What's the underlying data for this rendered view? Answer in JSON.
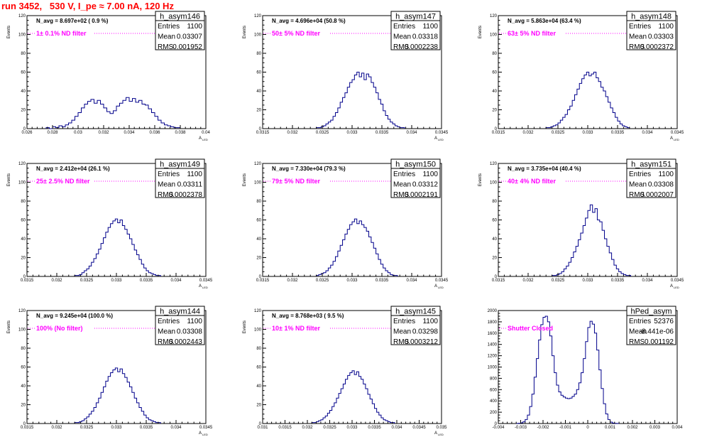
{
  "page_title": "run 3452,   530 V, I_pe ≈ 7.00 nA, 120 Hz",
  "chart_data": [
    {
      "type": "bar",
      "name": "h_asym146",
      "navg": "N_avg = 8.697e+02 ( 0.9 %)",
      "filter": "1± 0.1% ND filter",
      "stats": {
        "entries": "1100",
        "mean": "0.03307",
        "rms": "0.001952"
      },
      "xlabel": "A",
      "xlabel_sub": "LED",
      "ylabel": "Events",
      "xlim": [
        0.026,
        0.04
      ],
      "ylim": [
        0,
        120
      ],
      "xticks": [
        "0.026",
        "0.028",
        "0.03",
        "0.032",
        "0.034",
        "0.036",
        "0.038",
        "0.04"
      ],
      "yticks": [
        "0",
        "20",
        "40",
        "60",
        "80",
        "100",
        "120"
      ],
      "bins": {
        "start": 0.0275,
        "width": 0.00025,
        "counts": [
          1,
          0,
          2,
          1,
          3,
          2,
          4,
          6,
          9,
          13,
          17,
          22,
          26,
          29,
          31,
          27,
          30,
          26,
          22,
          18,
          16,
          19,
          24,
          27,
          30,
          33,
          29,
          32,
          28,
          30,
          26,
          25,
          21,
          17,
          13,
          9,
          6,
          4,
          3,
          2,
          1,
          1
        ]
      }
    },
    {
      "type": "bar",
      "name": "h_asym147",
      "navg": "N_avg = 4.696e+04 (50.8 %)",
      "filter": "50± 5% ND filter",
      "stats": {
        "entries": "1100",
        "mean": "0.03318",
        "rms": "0.0002238"
      },
      "xlabel": "A",
      "xlabel_sub": "LED",
      "ylabel": "Events",
      "xlim": [
        0.0315,
        0.0345
      ],
      "ylim": [
        0,
        120
      ],
      "xticks": [
        "0.0315",
        "0.032",
        "0.0325",
        "0.033",
        "0.0335",
        "0.034",
        "0.0345"
      ],
      "yticks": [
        "0",
        "20",
        "40",
        "60",
        "80",
        "100",
        "120"
      ],
      "bins": {
        "start": 0.0324,
        "width": 4e-05,
        "counts": [
          1,
          1,
          2,
          3,
          5,
          7,
          9,
          13,
          17,
          22,
          28,
          33,
          38,
          44,
          49,
          52,
          57,
          60,
          55,
          59,
          52,
          58,
          55,
          49,
          44,
          38,
          31,
          26,
          19,
          14,
          10,
          7,
          5,
          3,
          2,
          1,
          1
        ]
      }
    },
    {
      "type": "bar",
      "name": "h_asym148",
      "navg": "N_avg = 5.863e+04 (63.4 %)",
      "filter": "63± 5% ND filter",
      "stats": {
        "entries": "1100",
        "mean": "0.03303",
        "rms": "0.0002372"
      },
      "xlabel": "A",
      "xlabel_sub": "LED",
      "ylabel": "Events",
      "xlim": [
        0.0315,
        0.0345
      ],
      "ylim": [
        0,
        120
      ],
      "xticks": [
        "0.0315",
        "0.032",
        "0.0325",
        "0.033",
        "0.0335",
        "0.034",
        "0.0345"
      ],
      "yticks": [
        "0",
        "20",
        "40",
        "60",
        "80",
        "100",
        "120"
      ],
      "bins": {
        "start": 0.0323,
        "width": 4e-05,
        "counts": [
          1,
          1,
          2,
          3,
          4,
          6,
          9,
          12,
          15,
          20,
          24,
          30,
          36,
          42,
          48,
          53,
          57,
          60,
          56,
          58,
          60,
          54,
          50,
          44,
          40,
          34,
          28,
          22,
          17,
          12,
          8,
          5,
          3,
          2,
          1
        ]
      }
    },
    {
      "type": "bar",
      "name": "h_asym149",
      "navg": "N_avg = 2.412e+04 (26.1 %)",
      "filter": "25± 2.5% ND filter",
      "stats": {
        "entries": "1100",
        "mean": "0.03311",
        "rms": "0.0002378"
      },
      "xlabel": "A",
      "xlabel_sub": "LED",
      "ylabel": "Events",
      "xlim": [
        0.0315,
        0.0345
      ],
      "ylim": [
        0,
        120
      ],
      "xticks": [
        "0.0315",
        "0.032",
        "0.0325",
        "0.033",
        "0.0335",
        "0.034",
        "0.0345"
      ],
      "yticks": [
        "0",
        "20",
        "40",
        "60",
        "80",
        "100",
        "120"
      ],
      "bins": {
        "start": 0.0323,
        "width": 4e-05,
        "counts": [
          1,
          1,
          2,
          4,
          6,
          8,
          11,
          15,
          19,
          24,
          29,
          35,
          41,
          47,
          52,
          56,
          59,
          61,
          57,
          60,
          54,
          50,
          45,
          40,
          34,
          28,
          23,
          18,
          13,
          9,
          6,
          4,
          3,
          2,
          1,
          1
        ]
      }
    },
    {
      "type": "bar",
      "name": "h_asym150",
      "navg": "N_avg = 7.330e+04 (79.3 %)",
      "filter": "79± 5% ND filter",
      "stats": {
        "entries": "1100",
        "mean": "0.03312",
        "rms": "0.0002191"
      },
      "xlabel": "A",
      "xlabel_sub": "LED",
      "ylabel": "Events",
      "xlim": [
        0.0315,
        0.0345
      ],
      "ylim": [
        0,
        120
      ],
      "xticks": [
        "0.0315",
        "0.032",
        "0.0325",
        "0.033",
        "0.0335",
        "0.034",
        "0.0345"
      ],
      "yticks": [
        "0",
        "20",
        "40",
        "60",
        "80",
        "100",
        "120"
      ],
      "bins": {
        "start": 0.0324,
        "width": 4e-05,
        "counts": [
          1,
          2,
          3,
          4,
          6,
          9,
          12,
          16,
          21,
          27,
          33,
          39,
          45,
          50,
          55,
          58,
          61,
          56,
          59,
          55,
          52,
          48,
          42,
          36,
          30,
          24,
          18,
          13,
          9,
          6,
          4,
          2,
          1,
          1
        ]
      }
    },
    {
      "type": "bar",
      "name": "h_asym151",
      "navg": "N_avg = 3.735e+04 (40.4 %)",
      "filter": "40± 4% ND filter",
      "stats": {
        "entries": "1100",
        "mean": "0.03308",
        "rms": "0.0002007"
      },
      "xlabel": "A",
      "xlabel_sub": "LED",
      "ylabel": "Events",
      "xlim": [
        0.0315,
        0.0345
      ],
      "ylim": [
        0,
        120
      ],
      "xticks": [
        "0.0315",
        "0.032",
        "0.0325",
        "0.033",
        "0.0335",
        "0.034",
        "0.0345"
      ],
      "yticks": [
        "0",
        "20",
        "40",
        "60",
        "80",
        "100",
        "120"
      ],
      "bins": {
        "start": 0.0324,
        "width": 4e-05,
        "counts": [
          1,
          1,
          2,
          3,
          5,
          8,
          11,
          15,
          20,
          26,
          32,
          39,
          46,
          54,
          62,
          70,
          76,
          68,
          72,
          60,
          58,
          49,
          40,
          32,
          25,
          18,
          12,
          8,
          5,
          3,
          2,
          1,
          1
        ]
      }
    },
    {
      "type": "bar",
      "name": "h_asym144",
      "navg": "N_avg = 9.245e+04 (100.0 %)",
      "filter": "100% (No filter)",
      "stats": {
        "entries": "1100",
        "mean": "0.03308",
        "rms": "0.0002443"
      },
      "xlabel": "A",
      "xlabel_sub": "LED",
      "ylabel": "Events",
      "xlim": [
        0.0315,
        0.0345
      ],
      "ylim": [
        0,
        120
      ],
      "xticks": [
        "0.0315",
        "0.032",
        "0.0325",
        "0.033",
        "0.0335",
        "0.034",
        "0.0345"
      ],
      "yticks": [
        "0",
        "20",
        "40",
        "60",
        "80",
        "100",
        "120"
      ],
      "bins": {
        "start": 0.0323,
        "width": 4e-05,
        "counts": [
          1,
          1,
          2,
          3,
          5,
          7,
          10,
          13,
          17,
          22,
          27,
          33,
          39,
          45,
          50,
          54,
          57,
          59,
          55,
          58,
          53,
          49,
          44,
          39,
          33,
          27,
          22,
          17,
          13,
          9,
          6,
          4,
          3,
          2,
          1,
          1
        ]
      }
    },
    {
      "type": "bar",
      "name": "h_asym145",
      "navg": "N_avg = 8.768e+03 ( 9.5 %)",
      "filter": "10± 1% ND filter",
      "stats": {
        "entries": "1100",
        "mean": "0.03298",
        "rms": "0.0003212"
      },
      "xlabel": "A",
      "xlabel_sub": "LED",
      "ylabel": "Events",
      "xlim": [
        0.031,
        0.035
      ],
      "ylim": [
        0,
        120
      ],
      "xticks": [
        "0.031",
        "0.0315",
        "0.032",
        "0.0325",
        "0.033",
        "0.0335",
        "0.034",
        "0.0345",
        "0.035"
      ],
      "yticks": [
        "0",
        "20",
        "40",
        "60",
        "80",
        "100",
        "120"
      ],
      "bins": {
        "start": 0.0321,
        "width": 5e-05,
        "counts": [
          1,
          1,
          2,
          3,
          4,
          6,
          8,
          11,
          14,
          18,
          22,
          27,
          32,
          37,
          42,
          47,
          51,
          54,
          56,
          52,
          55,
          50,
          47,
          42,
          37,
          31,
          26,
          21,
          16,
          12,
          9,
          6,
          4,
          3,
          2,
          1,
          1
        ]
      }
    },
    {
      "type": "bar",
      "name": "hPed_asym",
      "navg": "",
      "filter": "Shutter Closed",
      "stats": {
        "entries": "52376",
        "mean": "-8.441e-06",
        "rms": "0.001192"
      },
      "xlabel": "",
      "xlabel_sub": "",
      "ylabel": "",
      "xlim": [
        -0.004,
        0.004
      ],
      "ylim": [
        0,
        2000
      ],
      "xticks": [
        "-0.004",
        "-0.003",
        "-0.002",
        "-0.001",
        "0",
        "0.001",
        "0.002",
        "0.003",
        "0.004"
      ],
      "yticks": [
        "0",
        "200",
        "400",
        "600",
        "800",
        "1000",
        "1200",
        "1400",
        "1600",
        "1800",
        "2000"
      ],
      "bins": {
        "start": -0.0032,
        "width": 0.0001,
        "counts": [
          2,
          5,
          12,
          30,
          70,
          150,
          300,
          520,
          820,
          1150,
          1480,
          1750,
          1880,
          1900,
          1800,
          1550,
          1200,
          900,
          680,
          560,
          500,
          470,
          450,
          440,
          450,
          480,
          520,
          600,
          720,
          900,
          1150,
          1450,
          1700,
          1810,
          1760,
          1600,
          1300,
          950,
          620,
          350,
          170,
          70,
          25,
          8,
          3,
          1
        ]
      }
    }
  ]
}
